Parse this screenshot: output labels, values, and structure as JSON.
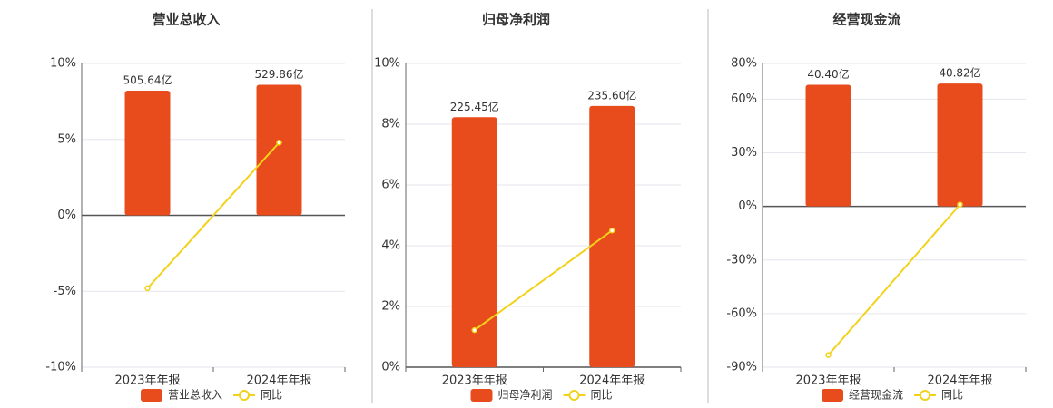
{
  "chart_data": [
    {
      "type": "bar",
      "title": "营业总收入",
      "categories": [
        "2023年年报",
        "2024年年报"
      ],
      "series": [
        {
          "name": "营业总收入",
          "type": "bar",
          "color": "#e84c1c",
          "values": [
            505.64,
            529.86
          ],
          "value_labels": [
            "505.64亿",
            "529.86亿"
          ]
        },
        {
          "name": "同比",
          "type": "line",
          "color": "#f2d21b",
          "values": [
            -4.8,
            4.79
          ]
        }
      ],
      "ylim": [
        -10,
        10
      ],
      "yticks": [
        {
          "value": -10,
          "label": "-10%"
        },
        {
          "value": -5,
          "label": "-5%"
        },
        {
          "value": 0,
          "label": "0%"
        },
        {
          "value": 5,
          "label": "5%"
        },
        {
          "value": 10,
          "label": "10%"
        }
      ],
      "grid": true
    },
    {
      "type": "bar",
      "title": "归母净利润",
      "categories": [
        "2023年年报",
        "2024年年报"
      ],
      "series": [
        {
          "name": "归母净利润",
          "type": "bar",
          "color": "#e84c1c",
          "values": [
            225.45,
            235.6
          ],
          "value_labels": [
            "225.45亿",
            "235.60亿"
          ]
        },
        {
          "name": "同比",
          "type": "line",
          "color": "#f2d21b",
          "values": [
            1.22,
            4.5
          ]
        }
      ],
      "ylim": [
        0,
        10
      ],
      "yticks": [
        {
          "value": 0,
          "label": "0%"
        },
        {
          "value": 2,
          "label": "2%"
        },
        {
          "value": 4,
          "label": "4%"
        },
        {
          "value": 6,
          "label": "6%"
        },
        {
          "value": 8,
          "label": "8%"
        },
        {
          "value": 10,
          "label": "10%"
        }
      ],
      "grid": true
    },
    {
      "type": "bar",
      "title": "经营现金流",
      "categories": [
        "2023年年报",
        "2024年年报"
      ],
      "series": [
        {
          "name": "经营现金流",
          "type": "bar",
          "color": "#e84c1c",
          "values": [
            40.4,
            40.82
          ],
          "value_labels": [
            "40.40亿",
            "40.82亿"
          ]
        },
        {
          "name": "同比",
          "type": "line",
          "color": "#f2d21b",
          "values": [
            -83.2,
            1.04
          ]
        }
      ],
      "ylim": [
        -90,
        80
      ],
      "yticks": [
        {
          "value": -90,
          "label": "-90%"
        },
        {
          "value": -60,
          "label": "-60%"
        },
        {
          "value": -30,
          "label": "-30%"
        },
        {
          "value": 0,
          "label": "0%"
        },
        {
          "value": 30,
          "label": "30%"
        },
        {
          "value": 60,
          "label": "60%"
        },
        {
          "value": 80,
          "label": "80%"
        }
      ],
      "grid": true
    }
  ]
}
